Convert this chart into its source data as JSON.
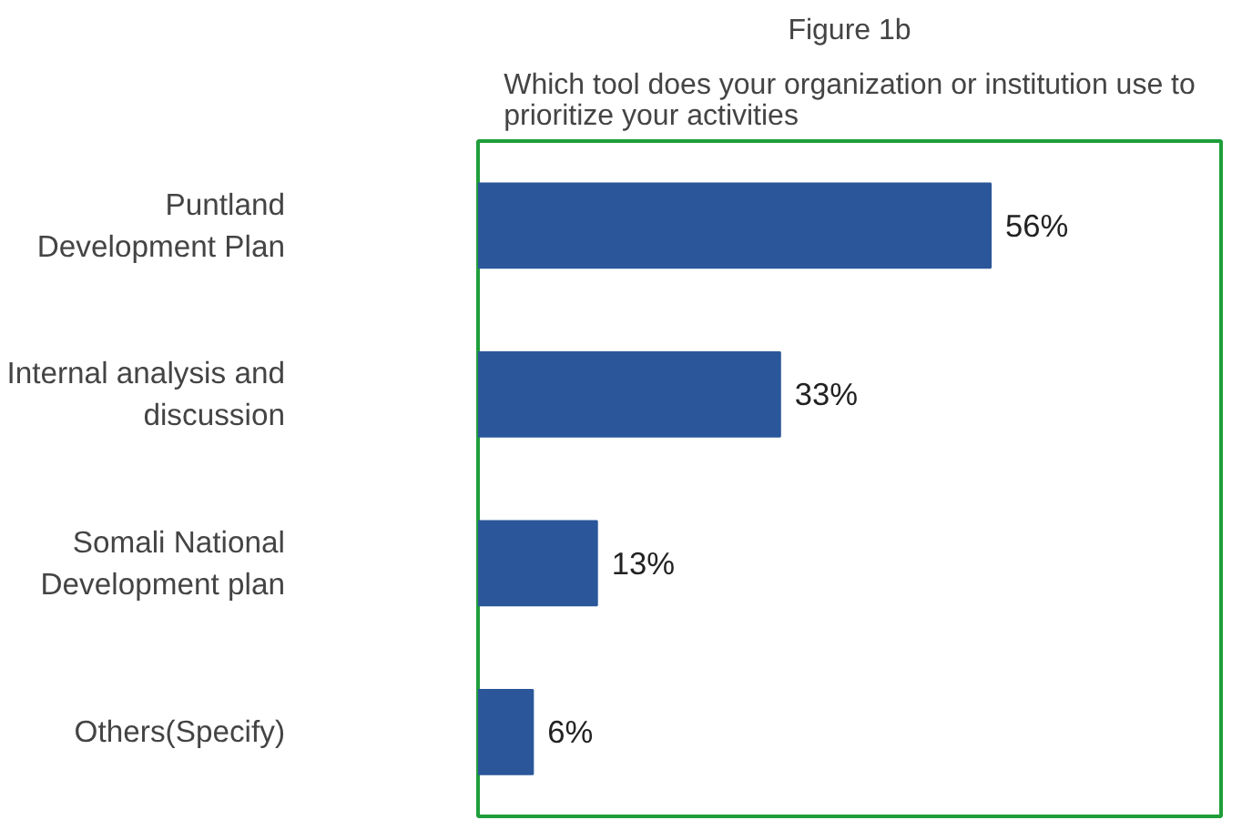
{
  "chart_data": {
    "type": "bar",
    "orientation": "horizontal",
    "title": "Figure 1b",
    "subtitle": "Which tool does your organization or institution use to\nprioritize your activities",
    "categories": [
      "Puntland\nDevelopment Plan",
      "Internal analysis and\ndiscussion",
      "Somali National\nDevelopment plan",
      "Others(Specify)"
    ],
    "values": [
      56,
      33,
      13,
      6
    ],
    "value_labels": [
      "56%",
      "33%",
      "13%",
      "6%"
    ],
    "color": "#2b579a"
  }
}
